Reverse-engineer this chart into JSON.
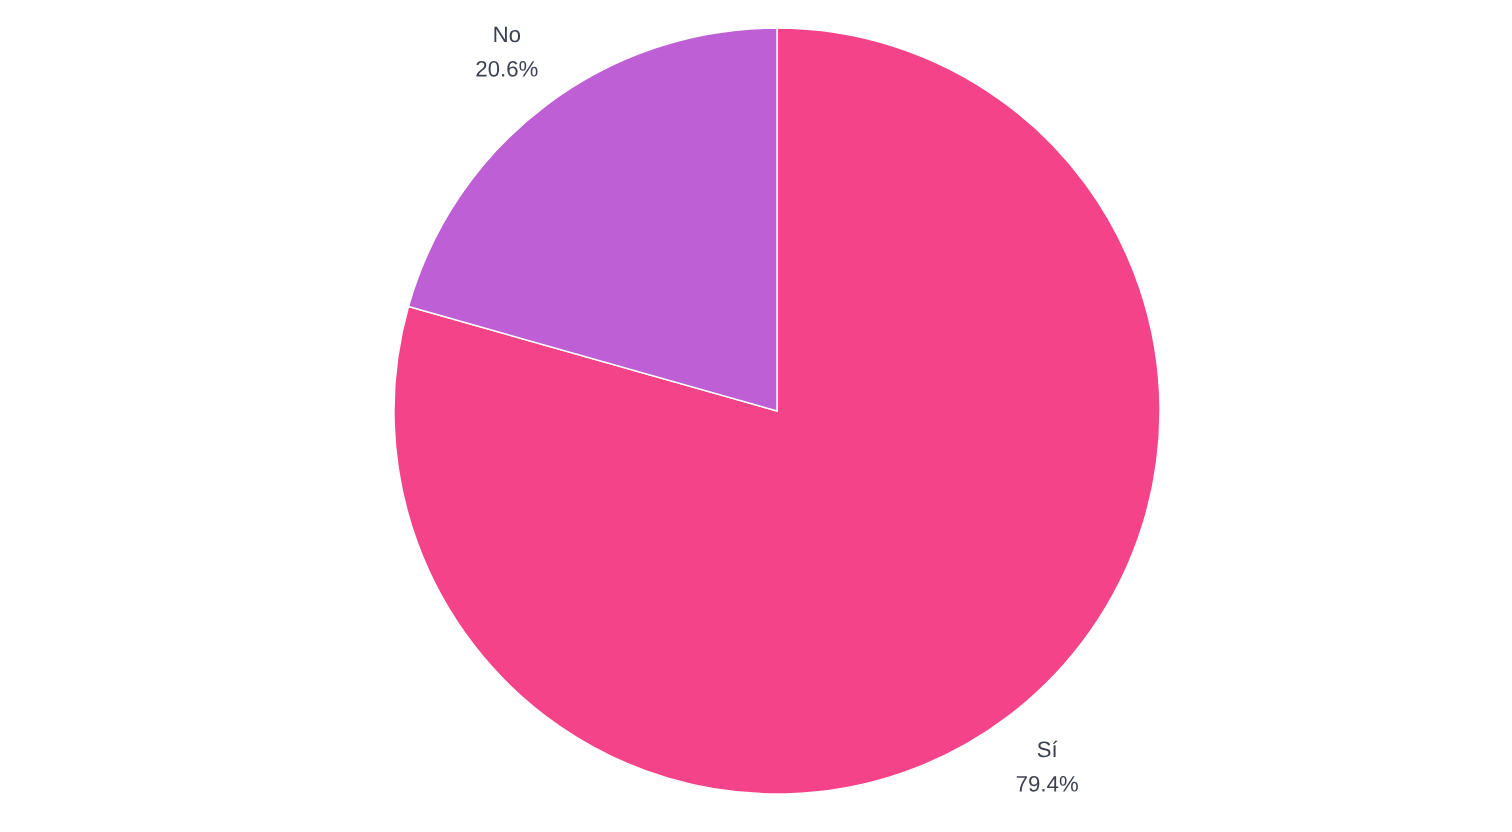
{
  "chart_data": {
    "type": "pie",
    "categories": [
      "Sí",
      "No"
    ],
    "values": [
      79.4,
      20.6
    ],
    "colors": [
      "#f44389",
      "#bf5fd6"
    ],
    "value_labels": [
      "79.4%",
      "20.6%"
    ]
  }
}
